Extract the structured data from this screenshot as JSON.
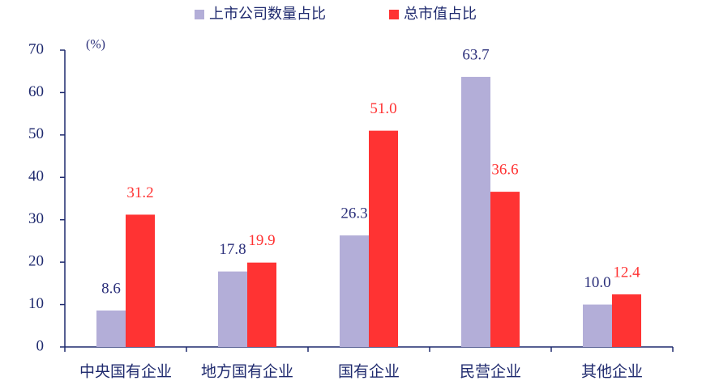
{
  "chart_data": {
    "type": "bar",
    "y_label": "(%)",
    "categories": [
      "中央国有企业",
      "地方国有企业",
      "国有企业",
      "民营企业",
      "其他企业"
    ],
    "series": [
      {
        "name": "上市公司数量占比",
        "color": "#b3aed8",
        "label_color": "#2b2f7a",
        "values": [
          8.6,
          17.8,
          26.3,
          63.7,
          10.0
        ],
        "value_labels": [
          "8.6",
          "17.8",
          "26.3",
          "63.7",
          "10.0"
        ]
      },
      {
        "name": "总市值占比",
        "color": "#ff3333",
        "label_color": "#ff3333",
        "values": [
          31.2,
          19.9,
          51.0,
          36.6,
          12.4
        ],
        "value_labels": [
          "31.2",
          "19.9",
          "51.0",
          "36.6",
          "12.4"
        ]
      }
    ],
    "ylim": [
      0,
      70
    ],
    "yticks": [
      0,
      10,
      20,
      30,
      40,
      50,
      60,
      70
    ],
    "axis_color": "#1f2a6e",
    "grid": false
  }
}
